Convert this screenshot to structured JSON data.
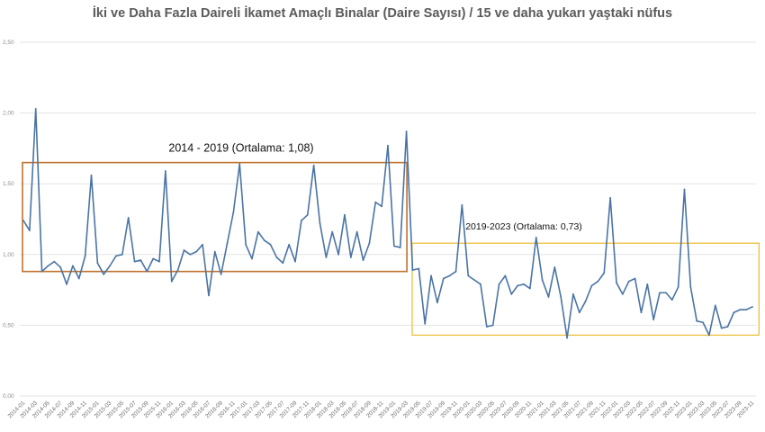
{
  "chart_data": {
    "type": "line",
    "title": "İki ve Daha Fazla Daireli İkamet Amaçlı Binalar (Daire Sayısı) / 15 ve daha yukarı yaştaki nüfus",
    "xlabel": "",
    "ylabel": "",
    "ylim": [
      0,
      2.5
    ],
    "yticks": [
      "0,00",
      "0,50",
      "1,00",
      "1,50",
      "2,00",
      "2,50"
    ],
    "grid": true,
    "legend": "none",
    "x_start": "2014-01",
    "x_tick_labels": [
      "2014-01",
      "2014-03",
      "2014-05",
      "2014-07",
      "2014-09",
      "2014-11",
      "2015-01",
      "2015-03",
      "2015-05",
      "2015-07",
      "2015-09",
      "2015-11",
      "2016-01",
      "2016-03",
      "2016-05",
      "2016-07",
      "2016-09",
      "2016-11",
      "2017-01",
      "2017-03",
      "2017-05",
      "2017-07",
      "2017-09",
      "2017-11",
      "2018-01",
      "2018-03",
      "2018-05",
      "2018-07",
      "2018-09",
      "2018-11",
      "2019-01",
      "2019-03",
      "2019-05",
      "2019-07",
      "2019-09",
      "2019-11",
      "2020-01",
      "2020-03",
      "2020-05",
      "2020-07",
      "2020-09",
      "2020-11",
      "2021-01",
      "2021-03",
      "2021-05",
      "2021-07",
      "2021-09",
      "2021-11",
      "2022-01",
      "2022-03",
      "2022-05",
      "2022-07",
      "2022-09",
      "2022-11",
      "2023-01",
      "2023-03",
      "2023-05",
      "2023-07",
      "2023-09",
      "2023-11"
    ],
    "series": [
      {
        "color": "#4a74a4",
        "values": [
          1.24,
          1.17,
          2.03,
          0.88,
          0.92,
          0.95,
          0.91,
          0.79,
          0.92,
          0.83,
          0.99,
          1.56,
          0.94,
          0.86,
          0.92,
          0.99,
          1.0,
          1.26,
          0.95,
          0.96,
          0.88,
          0.97,
          0.95,
          1.59,
          0.81,
          0.89,
          1.03,
          1.0,
          1.02,
          1.07,
          0.71,
          1.02,
          0.86,
          1.08,
          1.3,
          1.64,
          1.07,
          0.97,
          1.16,
          1.1,
          1.07,
          0.98,
          0.94,
          1.07,
          0.95,
          1.24,
          1.28,
          1.63,
          1.22,
          0.98,
          1.16,
          1.0,
          1.28,
          0.98,
          1.16,
          0.96,
          1.08,
          1.37,
          1.34,
          1.77,
          1.06,
          1.05,
          1.87,
          0.89,
          0.9,
          0.51,
          0.85,
          0.66,
          0.83,
          0.85,
          0.88,
          1.35,
          0.85,
          0.82,
          0.79,
          0.49,
          0.5,
          0.79,
          0.85,
          0.72,
          0.78,
          0.79,
          0.76,
          1.12,
          0.82,
          0.7,
          0.91,
          0.7,
          0.41,
          0.72,
          0.59,
          0.67,
          0.78,
          0.81,
          0.87,
          1.4,
          0.8,
          0.72,
          0.81,
          0.83,
          0.59,
          0.79,
          0.54,
          0.73,
          0.73,
          0.68,
          0.77,
          1.46,
          0.77,
          0.53,
          0.52,
          0.43,
          0.64,
          0.48,
          0.49,
          0.59,
          0.61,
          0.61,
          0.63
        ]
      }
    ],
    "annotations": [
      {
        "text": "2014 - 2019 (Ortalama: 1,08)",
        "mean": 1.08,
        "x_from": "2014-01",
        "x_to": "2019-03",
        "y_from": 0.88,
        "y_to": 1.65,
        "color": "#c0712f"
      },
      {
        "text": "2019-2023 (Ortalama: 0,73)",
        "mean": 0.73,
        "x_from": "2019-04",
        "x_to": "2023-12",
        "y_from": 0.43,
        "y_to": 1.08,
        "color": "#ecc03c"
      }
    ]
  }
}
